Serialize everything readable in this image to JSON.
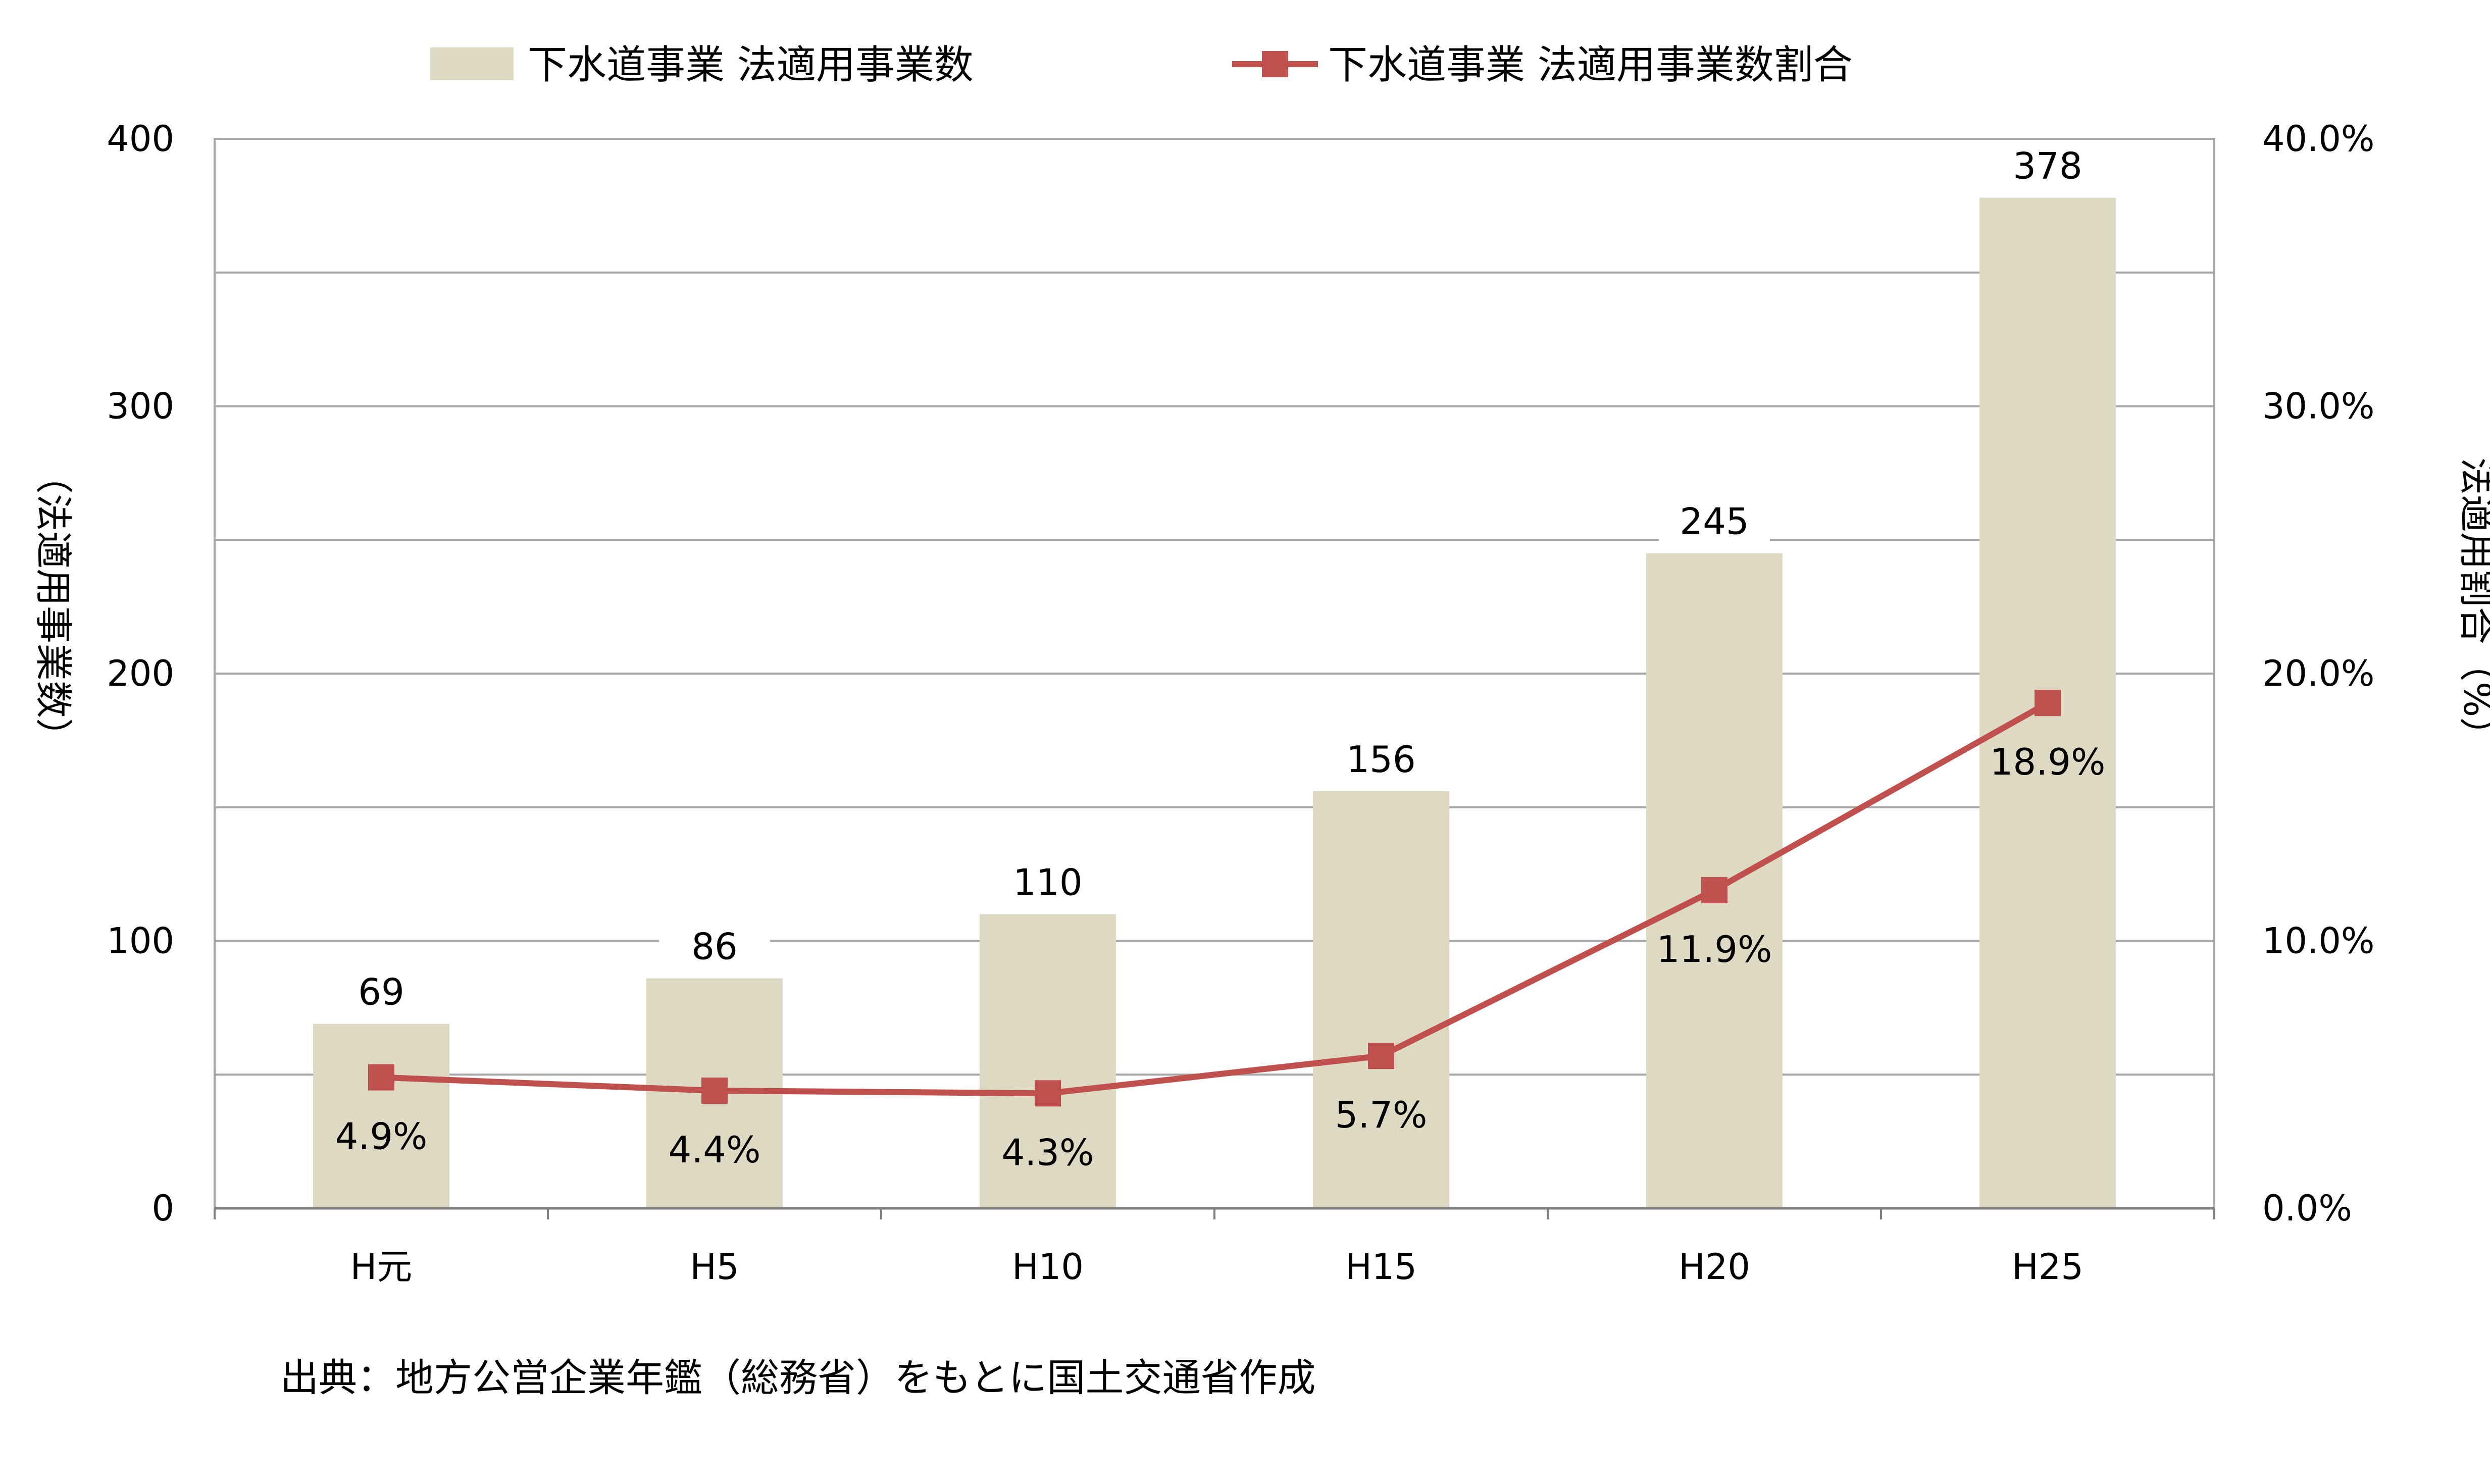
{
  "chart_data": {
    "type": "bar",
    "categories": [
      "H元",
      "H5",
      "H10",
      "H15",
      "H20",
      "H25"
    ],
    "series": [
      {
        "name": "下水道事業 法適用事業数",
        "type": "bar",
        "axis": "left",
        "values": [
          69,
          86,
          110,
          156,
          245,
          378
        ],
        "labels": [
          "69",
          "86",
          "110",
          "156",
          "245",
          "378"
        ],
        "color": "#ddd9c3"
      },
      {
        "name": "下水道事業 法適用事業数割合",
        "type": "line",
        "axis": "right",
        "values": [
          4.9,
          4.4,
          4.3,
          5.7,
          11.9,
          18.9
        ],
        "labels": [
          "4.9%",
          "4.4%",
          "4.3%",
          "5.7%",
          "11.9%",
          "18.9%"
        ],
        "color": "#c0504d"
      }
    ],
    "left_axis": {
      "title": "（法適用事業数）",
      "range": [
        0,
        400
      ],
      "ticks": [
        "0",
        "100",
        "200",
        "300",
        "400"
      ],
      "tick_values": [
        0,
        100,
        200,
        300,
        400
      ]
    },
    "right_axis": {
      "title": "法適用割合（%）",
      "range": [
        0,
        40
      ],
      "ticks": [
        "0.0%",
        "10.0%",
        "20.0%",
        "30.0%",
        "40.0%"
      ],
      "tick_values": [
        0,
        10,
        20,
        30,
        40
      ]
    },
    "gridlines": true,
    "legend_position": "top",
    "source": "出典：地方公営企業年鑑（総務省）をもとに国土交通省作成"
  }
}
